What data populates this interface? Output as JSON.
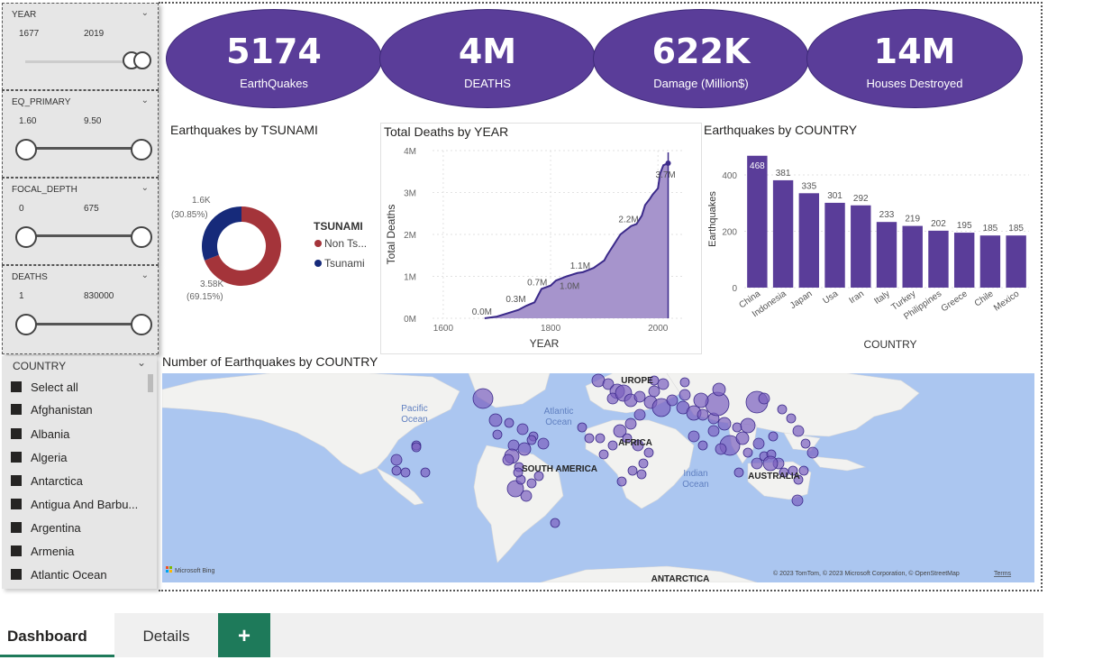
{
  "slicers": [
    {
      "title": "YEAR",
      "min": "1677",
      "max": "2019"
    },
    {
      "title": "EQ_PRIMARY",
      "min": "1.60",
      "max": "9.50"
    },
    {
      "title": "FOCAL_DEPTH",
      "min": "0",
      "max": "675"
    },
    {
      "title": "DEATHS",
      "min": "1",
      "max": "830000"
    }
  ],
  "kpis": [
    {
      "value": "5174",
      "label": "EarthQuakes"
    },
    {
      "value": "4M",
      "label": "DEATHS"
    },
    {
      "value": "622K",
      "label": "Damage (Million$)"
    },
    {
      "value": "14M",
      "label": "Houses Destroyed"
    }
  ],
  "country_slicer": {
    "title": "COUNTRY",
    "items": [
      "Select all",
      "Afghanistan",
      "Albania",
      "Algeria",
      "Antarctica",
      "Antigua And Barbu...",
      "Argentina",
      "Armenia",
      "Atlantic Ocean"
    ]
  },
  "chart_data": [
    {
      "type": "pie",
      "title": "Earthquakes by TSUNAMI",
      "legend_title": "TSUNAMI",
      "slices": [
        {
          "name": "Non Ts...",
          "value": 3580,
          "label": "3.58K",
          "pct": "(69.15%)",
          "color": "#a4343a"
        },
        {
          "name": "Tsunami",
          "value": 1600,
          "label": "1.6K",
          "pct": "(30.85%)",
          "color": "#162a7a"
        }
      ]
    },
    {
      "type": "area",
      "title": "Total Deaths by YEAR",
      "xlabel": "YEAR",
      "ylabel": "Total Deaths",
      "xlim": [
        1580,
        2050
      ],
      "ylim": [
        0,
        4000000
      ],
      "x_ticks": [
        "1600",
        "1800",
        "2000"
      ],
      "y_ticks": [
        "0M",
        "1M",
        "2M",
        "3M",
        "4M"
      ],
      "points": [
        [
          1677,
          0
        ],
        [
          1700,
          40000
        ],
        [
          1720,
          120000
        ],
        [
          1740,
          200000
        ],
        [
          1755,
          300000
        ],
        [
          1770,
          380000
        ],
        [
          1783,
          700000
        ],
        [
          1800,
          780000
        ],
        [
          1810,
          900000
        ],
        [
          1830,
          1000000
        ],
        [
          1850,
          1080000
        ],
        [
          1860,
          1100000
        ],
        [
          1880,
          1200000
        ],
        [
          1900,
          1380000
        ],
        [
          1905,
          1500000
        ],
        [
          1920,
          1800000
        ],
        [
          1930,
          2000000
        ],
        [
          1950,
          2200000
        ],
        [
          1960,
          2250000
        ],
        [
          1970,
          2450000
        ],
        [
          1976,
          2700000
        ],
        [
          1985,
          2850000
        ],
        [
          1990,
          2950000
        ],
        [
          2000,
          3100000
        ],
        [
          2004,
          3450000
        ],
        [
          2010,
          3650000
        ],
        [
          2019,
          3700000
        ]
      ],
      "labels": [
        {
          "text": "0.0M",
          "x": 1677,
          "y": 0
        },
        {
          "text": "0.3M",
          "x": 1740,
          "y": 300000
        },
        {
          "text": "0.7M",
          "x": 1780,
          "y": 700000
        },
        {
          "text": "1.0M",
          "x": 1810,
          "y": 1000000
        },
        {
          "text": "1.1M",
          "x": 1860,
          "y": 1100000
        },
        {
          "text": "2.2M",
          "x": 1950,
          "y": 2200000
        },
        {
          "text": "3.7M",
          "x": 2019,
          "y": 3700000
        }
      ]
    },
    {
      "type": "bar",
      "title": "Earthquakes by COUNTRY",
      "xlabel": "COUNTRY",
      "ylabel": "Earthquakes",
      "ylim": [
        0,
        480
      ],
      "y_ticks": [
        "0",
        "200",
        "400"
      ],
      "categories": [
        "China",
        "Indonesia",
        "Japan",
        "Usa",
        "Iran",
        "Italy",
        "Turkey",
        "Philippines",
        "Greece",
        "Chile",
        "Mexico"
      ],
      "values": [
        468,
        381,
        335,
        301,
        292,
        233,
        219,
        202,
        195,
        185,
        185
      ],
      "color": "#5a3d99"
    }
  ],
  "map": {
    "title": "Number of Earthquakes by COUNTRY",
    "labels": [
      {
        "text": "Pacific",
        "cls": "ocean"
      },
      {
        "text": "Ocean",
        "cls": "ocean"
      },
      {
        "text": "Atlantic",
        "cls": "ocean"
      },
      {
        "text": "Ocean",
        "cls": "ocean"
      },
      {
        "text": "Indian",
        "cls": "ocean"
      },
      {
        "text": "Ocean",
        "cls": "ocean"
      },
      {
        "text": "UROPE",
        "cls": "land"
      },
      {
        "text": "AFRICA",
        "cls": "land"
      },
      {
        "text": "SOUTH AMERICA",
        "cls": "land"
      },
      {
        "text": "AUSTRALIA",
        "cls": "land"
      },
      {
        "text": "ANTARCTICA",
        "cls": "land"
      }
    ],
    "logo": "Microsoft Bing",
    "copyright": "© 2023 TomTom, © 2023 Microsoft Corporation, © OpenStreetMap",
    "terms": "Terms"
  },
  "tabs": {
    "items": [
      "Dashboard",
      "Details"
    ],
    "add": "+"
  },
  "colors": {
    "accent": "#5a3d99",
    "map_water": "#abc6f0",
    "map_land": "#f2f2f0",
    "tab_green": "#1e7a5a"
  }
}
